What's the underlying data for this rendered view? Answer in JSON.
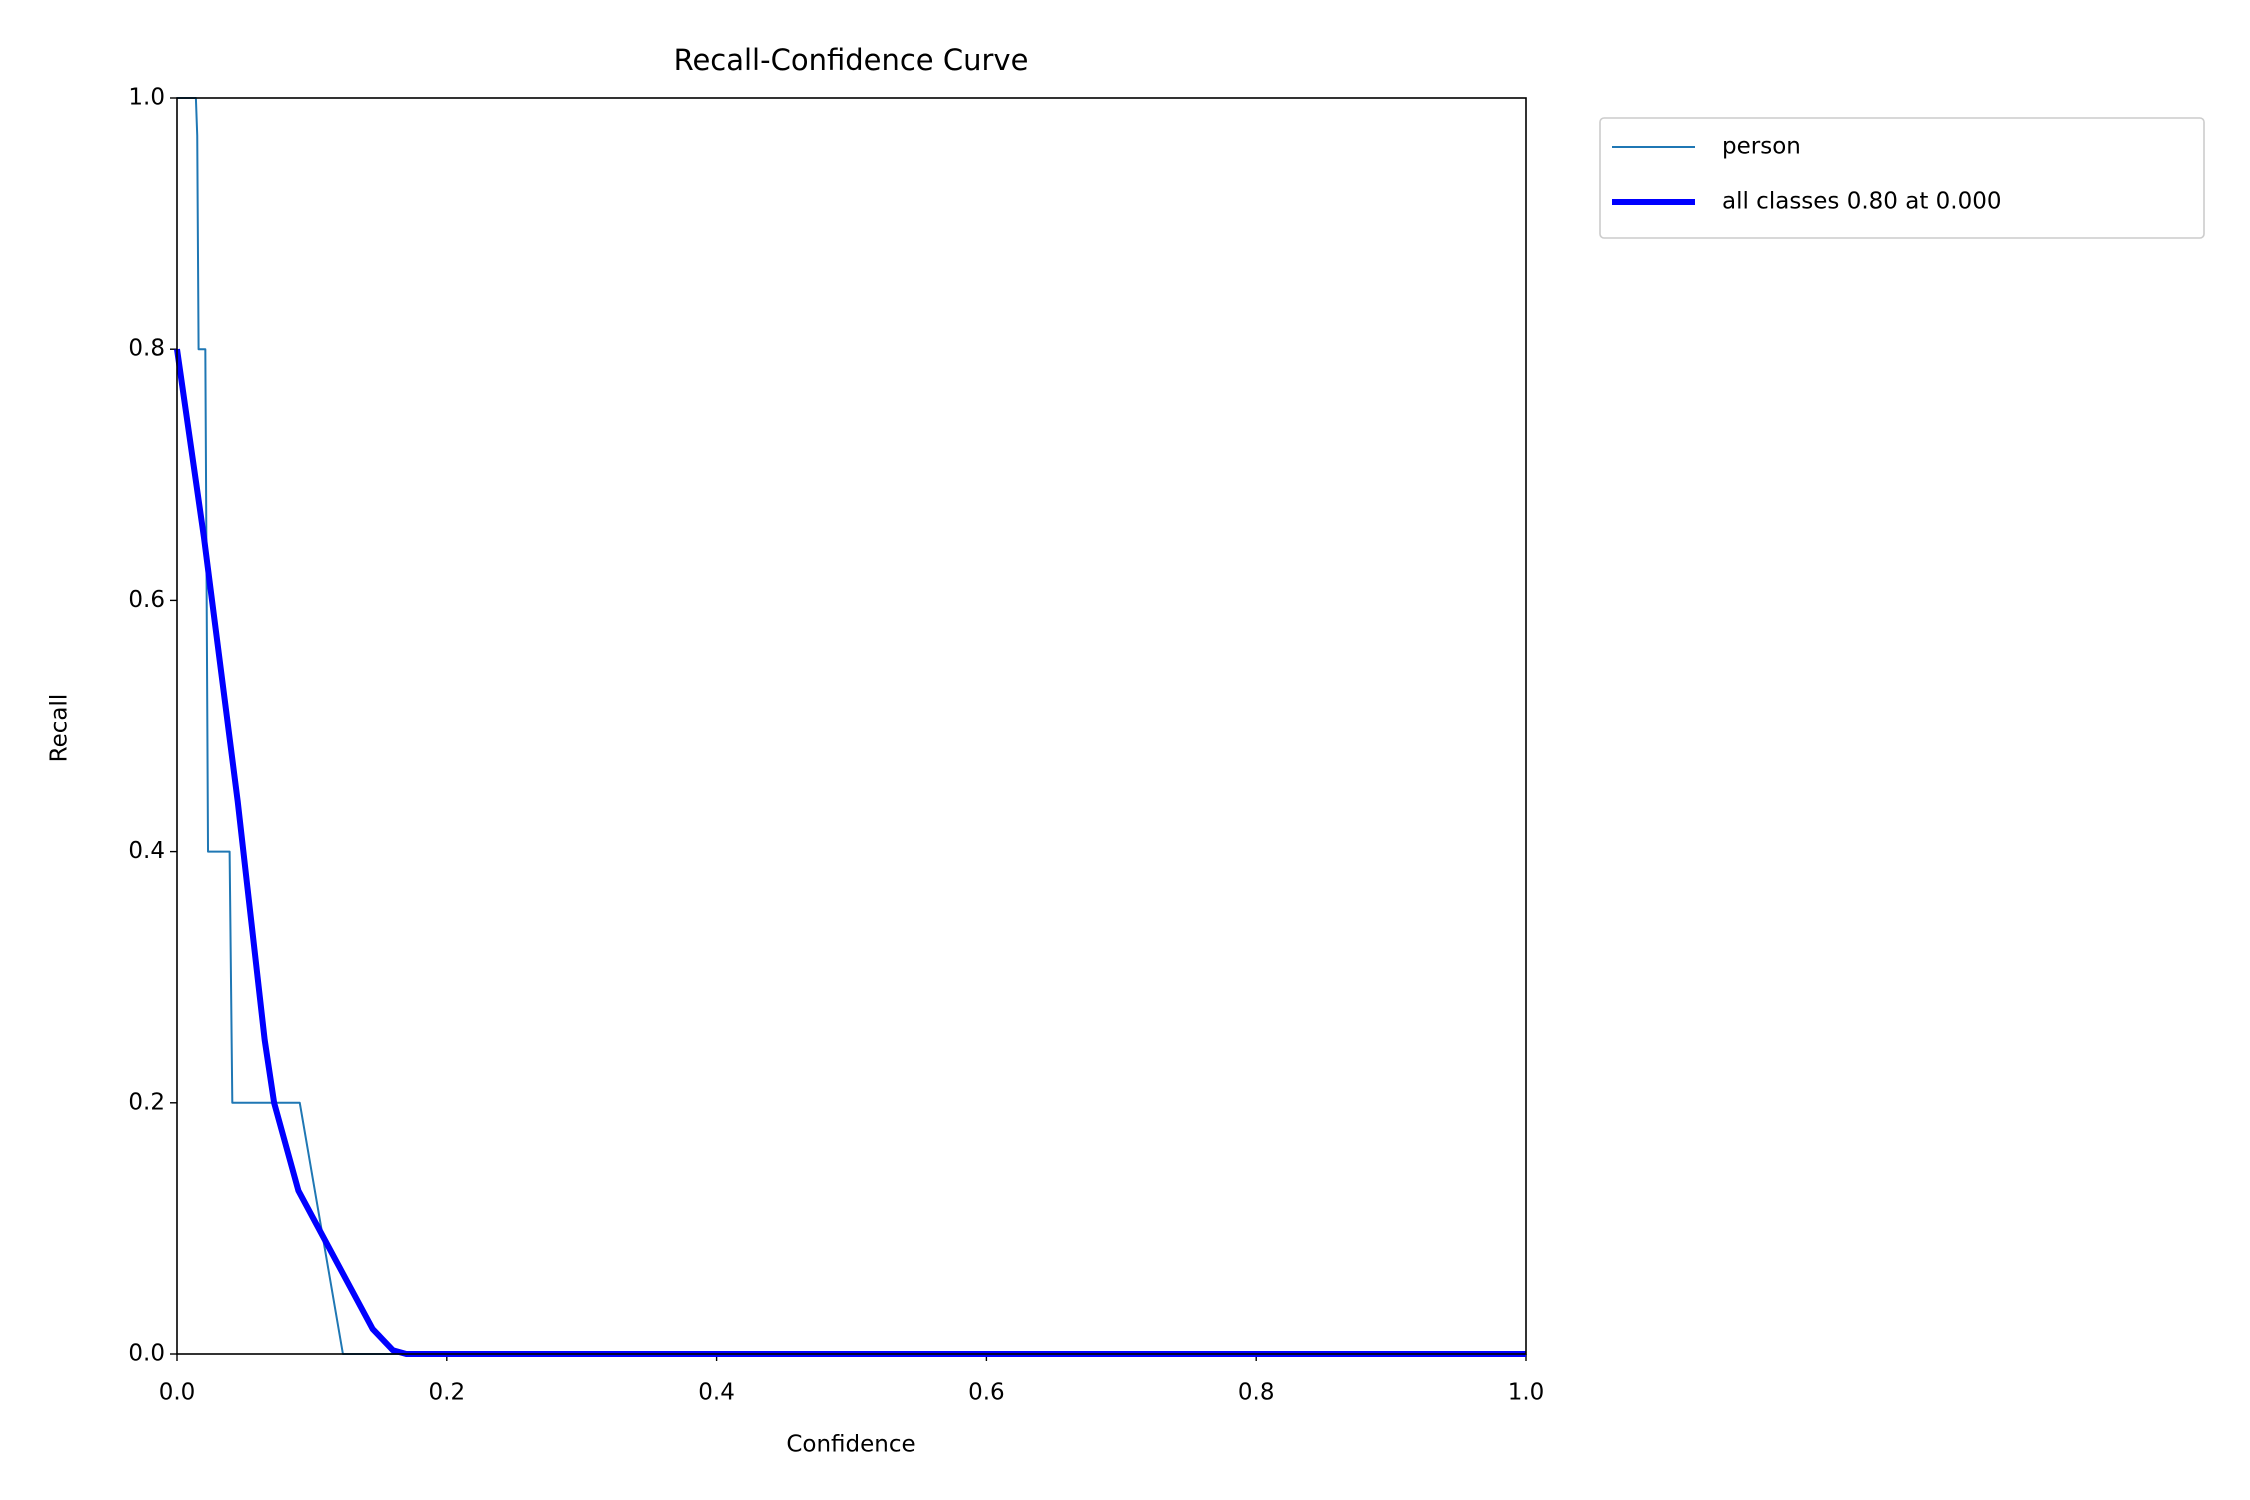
{
  "chart_data": {
    "type": "line",
    "title": "Recall-Confidence Curve",
    "xlabel": "Confidence",
    "ylabel": "Recall",
    "xlim": [
      0,
      1
    ],
    "ylim": [
      0,
      1
    ],
    "xticks": [
      {
        "value": 0,
        "label": "0.0"
      },
      0.2,
      0.4,
      0.6,
      0.8,
      {
        "value": 1,
        "label": "1.0"
      }
    ],
    "yticks": [
      {
        "value": 0,
        "label": "0.0"
      },
      0.2,
      0.4,
      0.6,
      0.8,
      {
        "value": 1,
        "label": "1.0"
      }
    ],
    "legend": "upper right outside",
    "series": [
      {
        "name": "person",
        "color": "#1f77b4",
        "x": [
          0,
          0.014,
          0.015,
          0.016,
          0.021,
          0.023,
          0.039,
          0.041,
          0.091,
          0.123,
          1
        ],
        "values": [
          1,
          1,
          0.97,
          0.8,
          0.8,
          0.4,
          0.4,
          0.2,
          0.2,
          0,
          0
        ]
      },
      {
        "name": "all classes 0.80 at 0.000",
        "color": "#0000ff",
        "x": [
          0,
          0.02,
          0.045,
          0.065,
          0.072,
          0.09,
          0.12,
          0.145,
          0.16,
          0.17,
          1
        ],
        "values": [
          0.8,
          0.65,
          0.44,
          0.25,
          0.2,
          0.13,
          0.07,
          0.02,
          0.003,
          0,
          0
        ]
      }
    ]
  }
}
